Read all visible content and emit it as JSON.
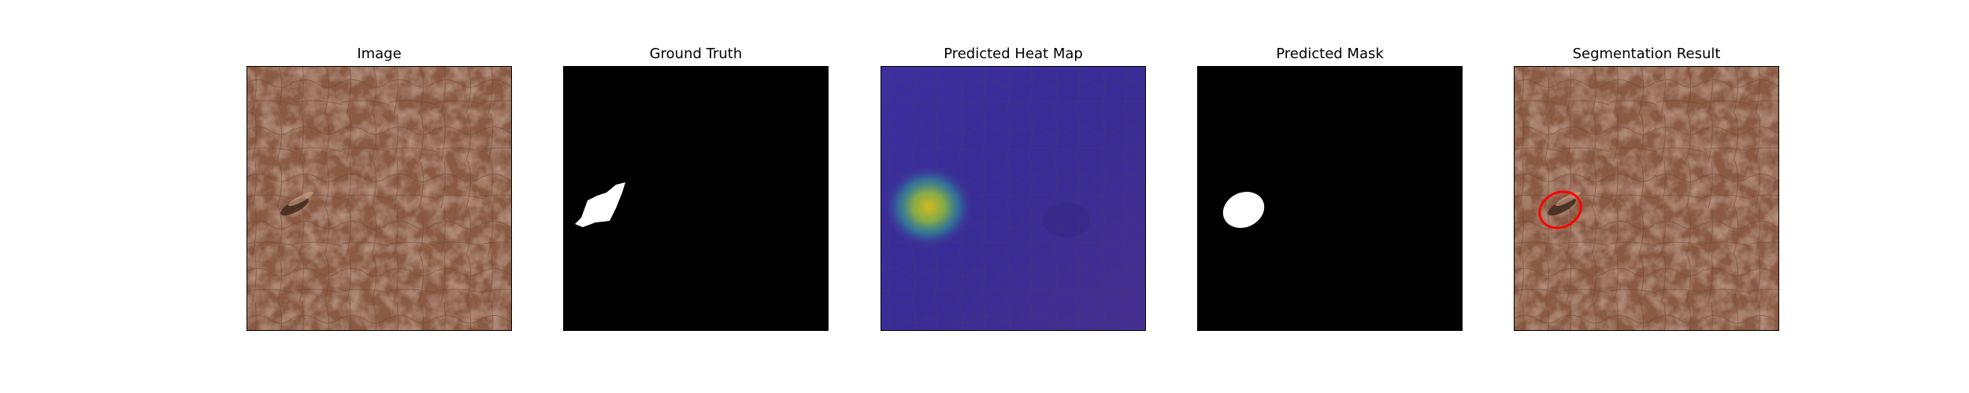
{
  "figure": {
    "panels": [
      {
        "title": "Image"
      },
      {
        "title": "Ground Truth"
      },
      {
        "title": "Predicted Heat Map"
      },
      {
        "title": "Predicted Mask"
      },
      {
        "title": "Segmentation Result"
      }
    ]
  },
  "colors": {
    "leather_base": "#8a5a43",
    "mask_foreground": "#ffffff",
    "mask_background": "#000000",
    "heatmap_low": "#3b2a9a",
    "heatmap_high": "#d9c21a",
    "contour": "#ff0000"
  }
}
